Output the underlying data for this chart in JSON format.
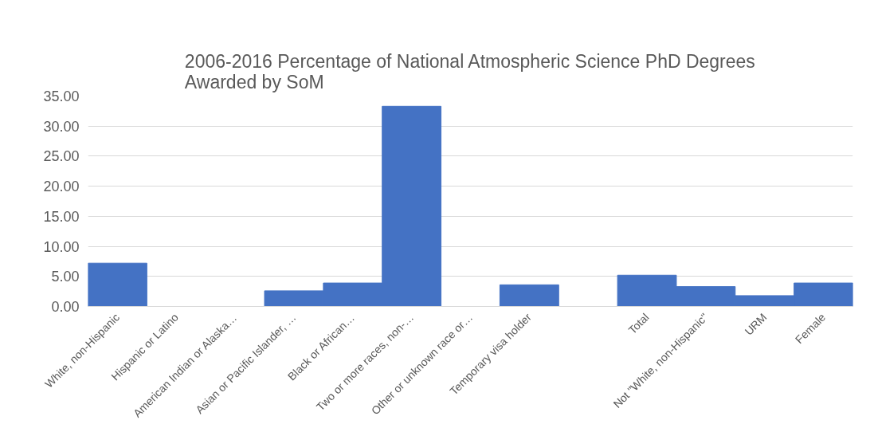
{
  "chart_data": {
    "type": "bar",
    "title": "2006-2016 Percentage of National Atmospheric Science PhD Degrees Awarded by SoM",
    "categories": [
      "White, non-Hispanic",
      "Hispanic or Latino",
      "American Indian or Alaska…",
      "Asian or Pacific Islander, …",
      "Black or African…",
      "Two or more races, non-…",
      "Other or unknown race or…",
      "Temporary visa holder",
      null,
      "Total",
      "Not \"White, non-Hispanic\"",
      "URM",
      "Female"
    ],
    "values": [
      7.2,
      0,
      0,
      2.6,
      3.9,
      33.3,
      0,
      3.6,
      null,
      5.2,
      3.3,
      1.8,
      3.9
    ],
    "color": "#4472c4",
    "ylim": [
      0,
      35
    ],
    "yticks": [
      {
        "value": 0,
        "label": "0.00"
      },
      {
        "value": 5,
        "label": "5.00"
      },
      {
        "value": 10,
        "label": "10.00"
      },
      {
        "value": 15,
        "label": "15.00"
      },
      {
        "value": 20,
        "label": "20.00"
      },
      {
        "value": 25,
        "label": "25.00"
      },
      {
        "value": 30,
        "label": "30.00"
      },
      {
        "value": 35,
        "label": "35.00"
      }
    ],
    "grid": "y"
  }
}
